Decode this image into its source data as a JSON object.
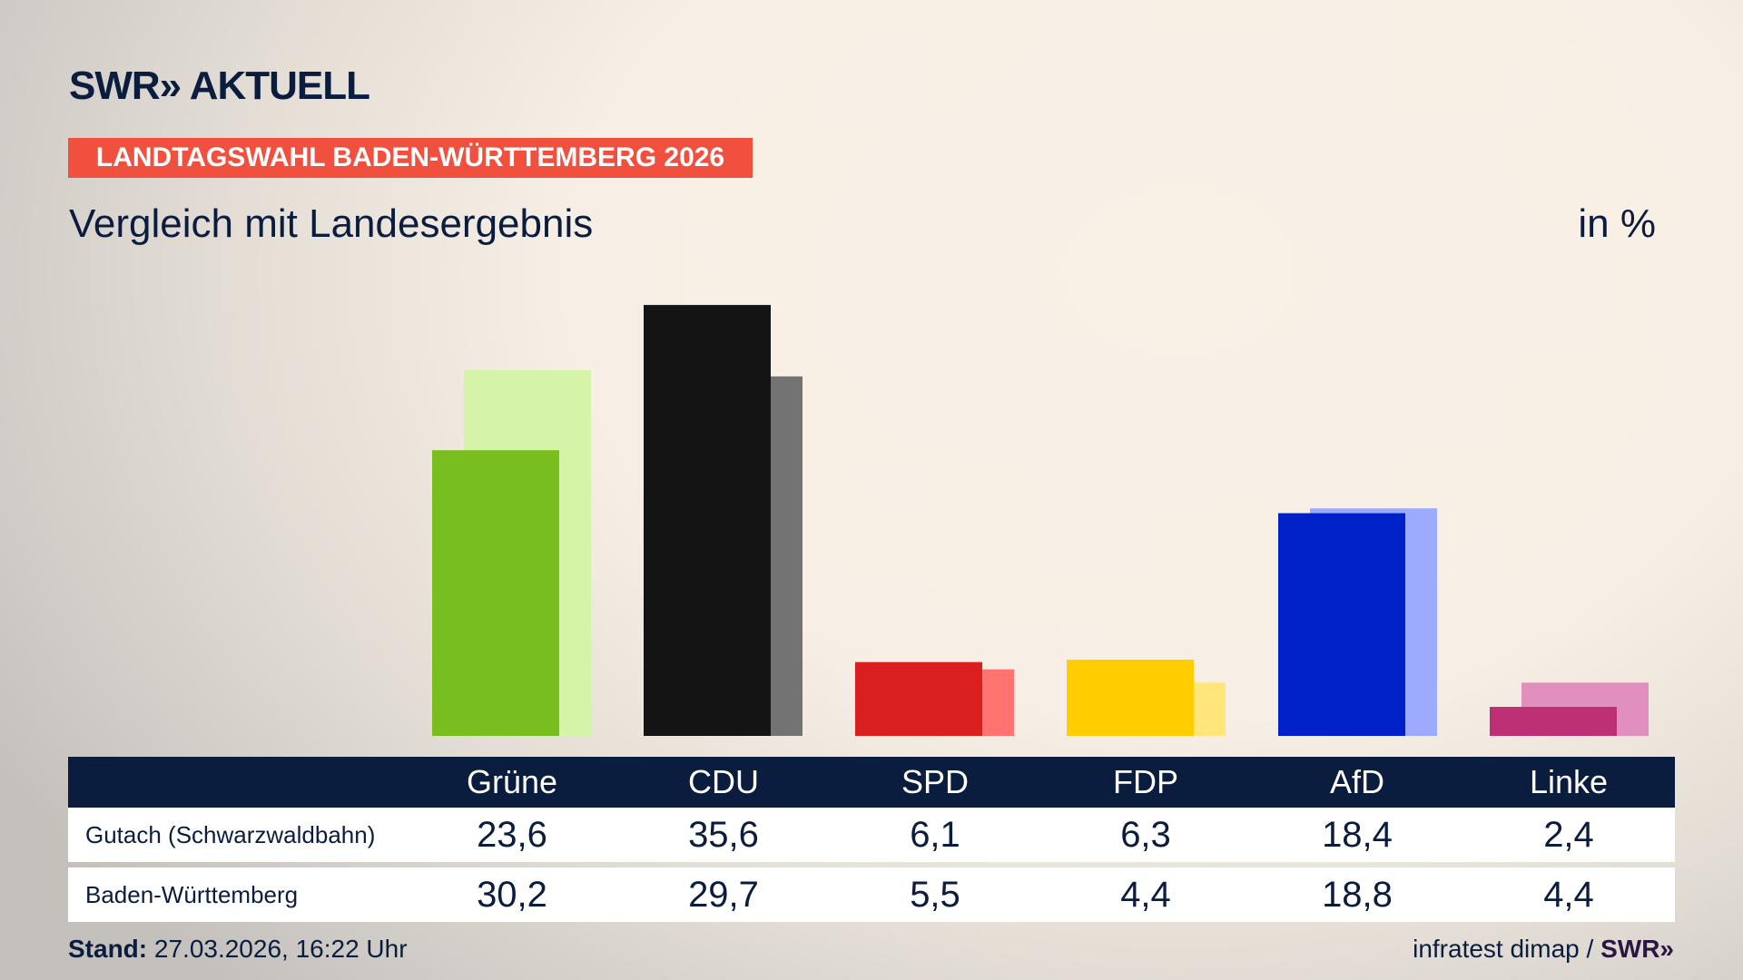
{
  "header": {
    "logo": "SWR» AKTUELL",
    "banner": "LANDTAGSWAHL BADEN-WÜRTTEMBERG 2026",
    "subtitle": "Vergleich mit Landesergebnis",
    "unit": "in %"
  },
  "colors": {
    "navy": "#0b1d3f",
    "banner": "#f2503f"
  },
  "chart_data": {
    "type": "bar",
    "title": "Vergleich mit Landesergebnis",
    "ylabel": "in %",
    "categories": [
      "Grüne",
      "CDU",
      "SPD",
      "FDP",
      "AfD",
      "Linke"
    ],
    "series": [
      {
        "name": "Gutach (Schwarzwaldbahn)",
        "values": [
          23.6,
          35.6,
          6.1,
          6.3,
          18.4,
          2.4
        ],
        "colors": [
          "#78be1e",
          "#141414",
          "#d9201f",
          "#ffcd00",
          "#0020c8",
          "#bd3075"
        ]
      },
      {
        "name": "Baden-Württemberg",
        "values": [
          30.2,
          29.7,
          5.5,
          4.4,
          18.8,
          4.4
        ],
        "colors": [
          "#d6f4a8",
          "#737373",
          "#ff7470",
          "#ffe57a",
          "#9dabff",
          "#e08fbf"
        ]
      }
    ],
    "ylim": [
      0,
      36
    ],
    "grid": false,
    "legend": "none"
  },
  "table": {
    "headers": [
      "Grüne",
      "CDU",
      "SPD",
      "FDP",
      "AfD",
      "Linke"
    ],
    "rows": [
      {
        "label": "Gutach (Schwarzwaldbahn)",
        "values": [
          "23,6",
          "35,6",
          "6,1",
          "6,3",
          "18,4",
          "2,4"
        ]
      },
      {
        "label": "Baden-Württemberg",
        "values": [
          "30,2",
          "29,7",
          "5,5",
          "4,4",
          "18,8",
          "4,4"
        ]
      }
    ]
  },
  "footer": {
    "stand_label": "Stand:",
    "stand_value": "27.03.2026, 16:22 Uhr",
    "source": "infratest dimap /",
    "source_logo": "SWR»"
  }
}
